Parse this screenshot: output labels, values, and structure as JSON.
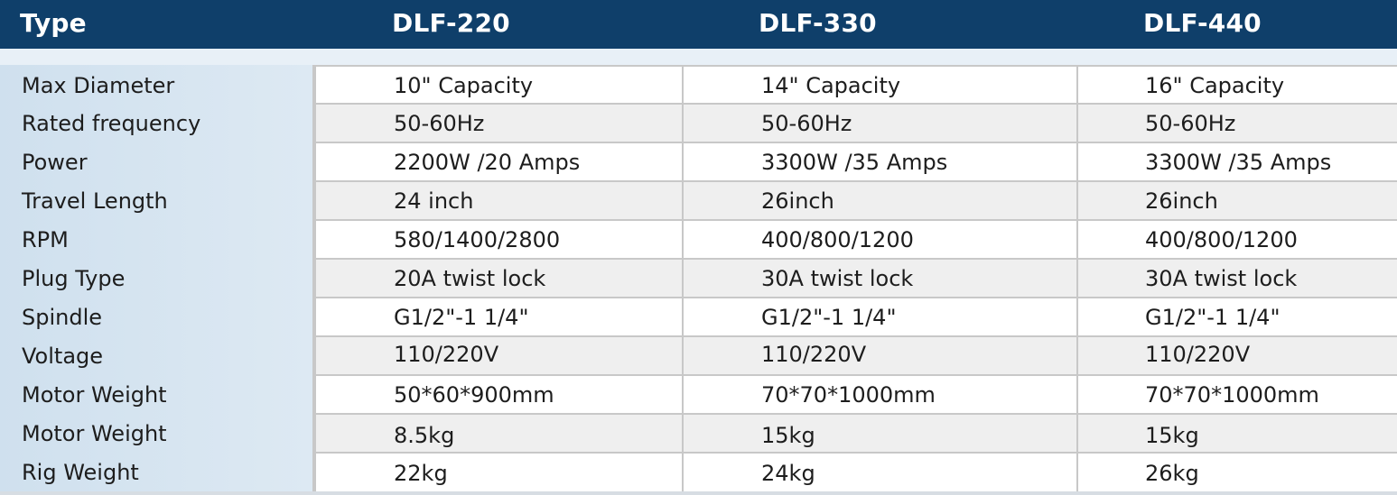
{
  "header": {
    "type_label": "Type",
    "models": [
      "DLF-220",
      "DLF-330",
      "DLF-440"
    ]
  },
  "colors": {
    "header_bg": "#0f3f6a",
    "header_text": "#ffffff",
    "row_alt_bg": "#efefef",
    "label_column_bg": "#dde9f3"
  },
  "rows": [
    {
      "label": "Max Diameter",
      "values": [
        "10\" Capacity",
        "14\" Capacity",
        "16\" Capacity"
      ]
    },
    {
      "label": "Rated frequency",
      "values": [
        "50-60Hz",
        "50-60Hz",
        "50-60Hz"
      ]
    },
    {
      "label": "Power",
      "values": [
        "2200W /20 Amps",
        "3300W /35 Amps",
        "3300W /35 Amps"
      ]
    },
    {
      "label": "Travel Length",
      "values": [
        "24 inch",
        "26inch",
        "26inch"
      ]
    },
    {
      "label": "RPM",
      "values": [
        "580/1400/2800",
        "400/800/1200",
        "400/800/1200"
      ]
    },
    {
      "label": "Plug Type",
      "values": [
        "20A twist lock",
        "30A twist lock",
        "30A twist lock"
      ]
    },
    {
      "label": "Spindle",
      "values": [
        "G1/2\"-1 1/4\"",
        "G1/2\"-1 1/4\"",
        "G1/2\"-1 1/4\""
      ]
    },
    {
      "label": "Voltage",
      "values": [
        "110/220V",
        "110/220V",
        "110/220V"
      ]
    },
    {
      "label": "Motor Weight",
      "values": [
        "50*60*900mm",
        "70*70*1000mm",
        "70*70*1000mm"
      ]
    },
    {
      "label": "Motor Weight",
      "values": [
        "8.5kg",
        "15kg",
        "15kg"
      ]
    },
    {
      "label": "Rig Weight",
      "values": [
        "22kg",
        "24kg",
        "26kg"
      ]
    }
  ]
}
